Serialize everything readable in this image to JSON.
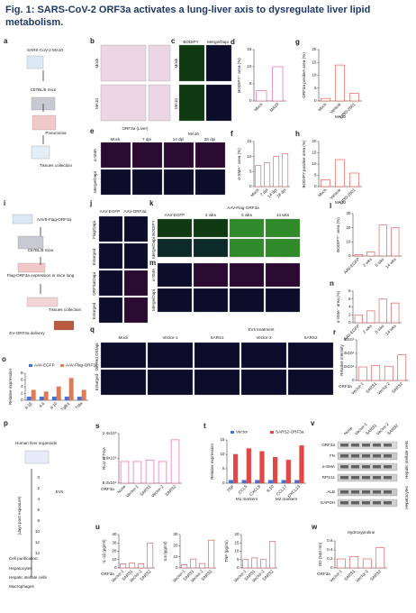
{
  "title": "Fig. 1: SARS-CoV-2 ORF3a activates a lung-liver axis to dysregulate liver lipid metabolism.",
  "panels": [
    {
      "label": "a",
      "texts": [
        "SARS-CoV-2 MA10",
        "C57BL/6 mice",
        "Pneumonia",
        "Tissues collection"
      ]
    },
    {
      "label": "b",
      "texts": [
        "Mock",
        "MA10",
        "ORF3a (Liver)"
      ]
    },
    {
      "label": "c",
      "texts": [
        "BODIPY",
        "Merge/Dapi",
        "Mock",
        "MA10"
      ]
    },
    {
      "label": "e",
      "texts": [
        "MA10",
        "Mock",
        "7 dpi",
        "14 dpi",
        "28 dpi",
        "α-SMA",
        "Merge/Dapi"
      ]
    },
    {
      "label": "i",
      "texts": [
        "AAV6-Flag-ORF3a",
        "C57BL/6 mice",
        "Flag-ORF3a expression in mice lung",
        "Tissues collection",
        "EV-ORF3a delivery"
      ]
    },
    {
      "label": "j",
      "texts": [
        "AAV-EGFP",
        "AAV-ORF3a",
        "Flag/Dapi",
        "Enlarged",
        "ORF3a/Dapi",
        "Enlarged"
      ]
    },
    {
      "label": "k",
      "texts": [
        "AAV-Flag-ORF3a",
        "AAV-EGFP",
        "2 wks",
        "5 wks",
        "14 wks",
        "BODIPY",
        "Merge/Dapi"
      ]
    },
    {
      "label": "m",
      "texts": [
        "α-SMA",
        "Merge/Dapi"
      ]
    },
    {
      "label": "q",
      "texts": [
        "EVs treatment",
        "Mock",
        "Vector-1",
        "SARS1",
        "Vector-2",
        "SARS2",
        "Oil Red O/Dapi",
        "Enlarged"
      ]
    },
    {
      "label": "p",
      "texts": [
        "Human liver organoids",
        "EVs",
        "(days post exposure)",
        "Cell purification:",
        "Hepatocytes",
        "Hepatic stellate cells",
        "Macrophages",
        "0",
        "2",
        "4",
        "6",
        "8",
        "10",
        "12",
        "14"
      ]
    },
    {
      "label": "v",
      "texts": [
        "ORF3a",
        "FN",
        "α-SMA",
        "RPS11",
        "ALB",
        "GAPDH",
        "None",
        "Vector-1",
        "SARS1",
        "Vector-2",
        "SARS2",
        "Hepatic stellate cells",
        "Hepatocytes"
      ]
    }
  ],
  "charts": [
    {
      "label": "d",
      "ylabel": "BODIPY⁺ area (%)",
      "categories": [
        "Mock",
        "MA10"
      ],
      "series": [
        {
          "color": "#e0529a",
          "values": [
            3,
            10
          ]
        }
      ],
      "ylim": [
        0,
        15
      ],
      "yticks": [
        0,
        5,
        10,
        15
      ]
    },
    {
      "label": "g",
      "ylabel": "ORF3a positive area (%)",
      "categories": [
        "Mock",
        "Vehicle",
        "EIDD-2801"
      ],
      "series": [
        {
          "color": "#e04848",
          "values": [
            1,
            14,
            3
          ]
        }
      ],
      "ylim": [
        0,
        20
      ],
      "yticks": [
        0,
        5,
        10,
        15,
        20
      ],
      "notes": [
        "MA10"
      ]
    },
    {
      "label": "f",
      "ylabel": "α-SMA⁺ area (%)",
      "categories": [
        "Mock",
        "7 dpi",
        "14 dpi",
        "28 dpi"
      ],
      "series": [
        {
          "color": "#e05a5a",
          "values": [
            7,
            8,
            10,
            11
          ]
        }
      ],
      "ylim": [
        0,
        15
      ],
      "yticks": [
        0,
        5,
        10,
        15
      ]
    },
    {
      "label": "h",
      "ylabel": "BODIPY positive area (%)",
      "categories": [
        "Mock",
        "Vehicle",
        "EIDD-2801"
      ],
      "series": [
        {
          "color": "#e04848",
          "values": [
            3,
            12,
            6
          ]
        }
      ],
      "ylim": [
        0,
        20
      ],
      "yticks": [
        0,
        5,
        10,
        15,
        20
      ],
      "notes": [
        "MA10"
      ]
    },
    {
      "label": "l",
      "ylabel": "BODIPY⁺ area (%)",
      "categories": [
        "AAV-EGFP",
        "2 wks",
        "5 wks",
        "14 wks"
      ],
      "series": [
        {
          "color": "#e04848",
          "values": [
            1,
            3,
            22,
            20
          ]
        }
      ],
      "ylim": [
        0,
        30
      ],
      "yticks": [
        0,
        10,
        20,
        30
      ]
    },
    {
      "label": "n",
      "ylabel": "α-SMA⁺ area (%)",
      "categories": [
        "AAV-EGFP",
        "2 wks",
        "5 wks",
        "14 wks"
      ],
      "series": [
        {
          "color": "#e04848",
          "values": [
            2,
            3,
            6,
            5
          ]
        }
      ],
      "ylim": [
        0,
        8
      ],
      "yticks": [
        0,
        2,
        4,
        6,
        8
      ]
    },
    {
      "label": "o",
      "ylabel": "Relative expression",
      "categories": [
        "Il-1β",
        "Il-6",
        "Il-10",
        "Tgfb1",
        "Tnfa"
      ],
      "series": [
        {
          "name": "AAV-EGFP",
          "color": "#4a6fd0",
          "values": [
            1,
            1,
            1,
            1,
            1
          ]
        },
        {
          "name": "AAV-Flag-ORF3a",
          "color": "#e07a50",
          "values": [
            3,
            2.5,
            4,
            6.5,
            3
          ]
        }
      ],
      "ylim": [
        0,
        8
      ],
      "yticks": [
        0,
        2,
        4,
        6,
        8
      ]
    },
    {
      "label": "r",
      "ylabel": "Relative intensity",
      "prefix": "ORF3a",
      "categories": [
        "Vector-1",
        "SARS1",
        "Vector-2",
        "SARS2"
      ],
      "series": [
        {
          "color": "#e04848",
          "values": [
            20000,
            22000,
            21000,
            38000
          ]
        }
      ],
      "ylim": [
        0,
        60000
      ],
      "yticks": [
        0,
        {
          "value": 20000,
          "label": "2x10⁴"
        },
        {
          "value": 40000,
          "label": "4x10⁴"
        },
        {
          "value": 60000,
          "label": "6x10⁴"
        }
      ]
    },
    {
      "label": "s",
      "ylabel": "RLU of TGA",
      "prefix": "ORF3a",
      "categories": [
        "None",
        "Vector-1",
        "SARS1",
        "Vector-2",
        "SARS2"
      ],
      "series": [
        {
          "color": "#e0529a",
          "values": [
            150000,
            150000,
            155000,
            150000,
            220000
          ]
        }
      ],
      "ylim": [
        80000,
        240000
      ],
      "yticks": [
        {
          "value": 80000,
          "label": "8.0x10⁴"
        },
        {
          "value": 160000,
          "label": "1.6x10⁵"
        },
        {
          "value": 240000,
          "label": "2.4x10⁵"
        }
      ]
    },
    {
      "label": "t",
      "ylabel": "Relative expression",
      "categories": [
        "TNF",
        "CCL5",
        "CXCL9",
        "IL10",
        "CCL17",
        "CXCL13"
      ],
      "series": [
        {
          "name": "Vector",
          "color": "#4a6fd0",
          "values": [
            1,
            1,
            1,
            1,
            1,
            1
          ]
        },
        {
          "name": "SARS2-ORF3a",
          "color": "#e04848",
          "values": [
            10,
            12,
            11,
            9,
            8,
            13
          ]
        }
      ],
      "ylim": [
        0,
        15
      ],
      "yticks": [
        0,
        5,
        10,
        15
      ],
      "notes": [
        "M1 markers",
        "M2 markers"
      ]
    },
    {
      "label": "u",
      "ylabel": "IL-1β (pg/ml)",
      "prefix": "ORF3a",
      "categories": [
        "Vector-1",
        "SARS1",
        "Vector-2",
        "SARS2"
      ],
      "series": [
        {
          "color": "#e04848",
          "values": [
            5,
            6,
            5,
            30
          ]
        }
      ],
      "ylim": [
        0,
        40
      ],
      "yticks": [
        0,
        10,
        20,
        30,
        40
      ]
    },
    {
      "ylabel": "IL6 (pg/ml)",
      "categories": [
        "Vector-1",
        "SARS1",
        "Vector-2",
        "SARS2"
      ],
      "series": [
        {
          "color": "#e04848",
          "values": [
            3,
            8,
            4,
            25
          ]
        }
      ],
      "ylim": [
        0,
        30
      ],
      "yticks": [
        0,
        10,
        20,
        30
      ]
    },
    {
      "ylabel": "TNF (pg/ml)",
      "categories": [
        "Vector-1",
        "SARS1",
        "Vector-2",
        "SARS2"
      ],
      "series": [
        {
          "color": "#e04848",
          "values": [
            5,
            6,
            5,
            16
          ]
        }
      ],
      "ylim": [
        0,
        20
      ],
      "yticks": [
        0,
        5,
        10,
        15,
        20
      ]
    },
    {
      "label": "w",
      "title": "Hydroxyproline",
      "ylabel": "OD (540 nm)",
      "prefix": "ORF3a",
      "categories": [
        "Vector-1",
        "SARS1",
        "Vector-2",
        "SARS2"
      ],
      "series": [
        {
          "color": "#e04848",
          "values": [
            0.2,
            0.25,
            0.2,
            0.45
          ]
        }
      ],
      "ylim": [
        0,
        0.6
      ],
      "yticks": [
        0,
        0.2,
        0.4,
        0.6
      ]
    }
  ]
}
